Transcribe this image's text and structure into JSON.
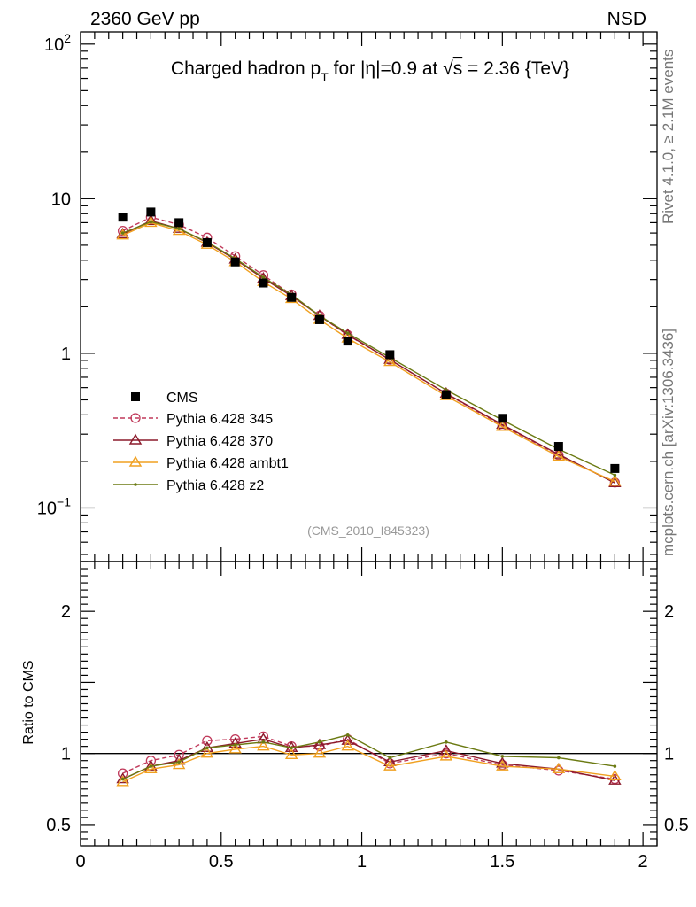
{
  "header": {
    "left": "2360 GeV pp",
    "right": "NSD"
  },
  "side_labels": {
    "top": "Rivet 4.1.0, ≥ 2.1M events",
    "bottom": "mcplots.cern.ch [arXiv:1306.3436]"
  },
  "chart_data": {
    "type": "line",
    "title": "Charged hadron p_T for |η|=0.9 at √s = 2.36 {TeV}",
    "title_parts": {
      "a": "Charged hadron p",
      "sub": "T",
      "b": " for |η|=0.9 at ",
      "root": "√",
      "s": "s",
      "c": " = 2.36 {TeV}"
    },
    "analysis_label": "(CMS_2010_I845323)",
    "main_panel": {
      "yscale": "log",
      "ylim": [
        0.045,
        120
      ],
      "xlim": [
        0,
        2.05
      ],
      "ytick_labels": [
        {
          "v": 100,
          "base": "10",
          "exp": "2"
        },
        {
          "v": 10,
          "base": "10",
          "exp": ""
        },
        {
          "v": 1,
          "base": "1",
          "exp": ""
        },
        {
          "v": 0.1,
          "base": "10",
          "exp": "−1"
        }
      ]
    },
    "ratio_panel": {
      "ylabel": "Ratio to CMS",
      "ylim": [
        0.35,
        2.35
      ],
      "ytick_labels": [
        "0.5",
        "1",
        "2"
      ]
    },
    "x": [
      0.15,
      0.25,
      0.35,
      0.45,
      0.55,
      0.65,
      0.75,
      0.85,
      0.95,
      1.1,
      1.3,
      1.5,
      1.7,
      1.9
    ],
    "xtick_labels": [
      "0",
      "0.5",
      "1",
      "1.5",
      "2"
    ],
    "series": [
      {
        "name": "CMS",
        "color": "#000000",
        "marker": "square",
        "line": "none",
        "values": [
          7.6,
          8.2,
          7.0,
          5.2,
          3.9,
          2.85,
          2.3,
          1.65,
          1.2,
          0.98,
          0.54,
          0.38,
          0.25,
          0.18
        ]
      },
      {
        "name": "Pythia 6.428 345",
        "color": "#c0395a",
        "marker": "circle",
        "line": "dashed",
        "values": [
          6.2,
          7.6,
          6.8,
          5.6,
          4.25,
          3.2,
          2.4,
          1.75,
          1.31,
          0.91,
          0.548,
          0.34,
          0.22,
          0.146
        ],
        "ratio": [
          0.86,
          0.95,
          0.99,
          1.09,
          1.1,
          1.12,
          1.05,
          1.05,
          1.1,
          0.93,
          1.0,
          0.92,
          0.88,
          0.82
        ]
      },
      {
        "name": "Pythia 6.428 370",
        "color": "#8b1a2b",
        "marker": "triangle",
        "line": "solid",
        "values": [
          5.9,
          7.2,
          6.4,
          5.2,
          4.05,
          3.05,
          2.35,
          1.75,
          1.32,
          0.91,
          0.55,
          0.346,
          0.222,
          0.145
        ],
        "ratio": [
          0.82,
          0.91,
          0.95,
          1.04,
          1.07,
          1.1,
          1.04,
          1.06,
          1.09,
          0.94,
          1.02,
          0.93,
          0.89,
          0.81
        ]
      },
      {
        "name": "Pythia 6.428 ambt1",
        "color": "#f0a020",
        "marker": "triangle",
        "line": "solid",
        "values": [
          5.8,
          7.0,
          6.2,
          5.05,
          3.9,
          2.9,
          2.25,
          1.65,
          1.25,
          0.88,
          0.53,
          0.335,
          0.215,
          0.148
        ],
        "ratio": [
          0.8,
          0.89,
          0.92,
          1.0,
          1.03,
          1.05,
          0.99,
          1.0,
          1.05,
          0.91,
          0.98,
          0.91,
          0.89,
          0.84
        ]
      },
      {
        "name": "Pythia 6.428 z2",
        "color": "#6b7a12",
        "marker": "dot",
        "line": "solid",
        "values": [
          6.0,
          7.1,
          6.4,
          5.25,
          4.1,
          3.1,
          2.4,
          1.75,
          1.35,
          0.94,
          0.58,
          0.37,
          0.24,
          0.163
        ],
        "ratio": [
          0.82,
          0.91,
          0.94,
          1.04,
          1.06,
          1.08,
          1.04,
          1.08,
          1.13,
          0.97,
          1.08,
          0.98,
          0.97,
          0.91
        ]
      }
    ]
  }
}
